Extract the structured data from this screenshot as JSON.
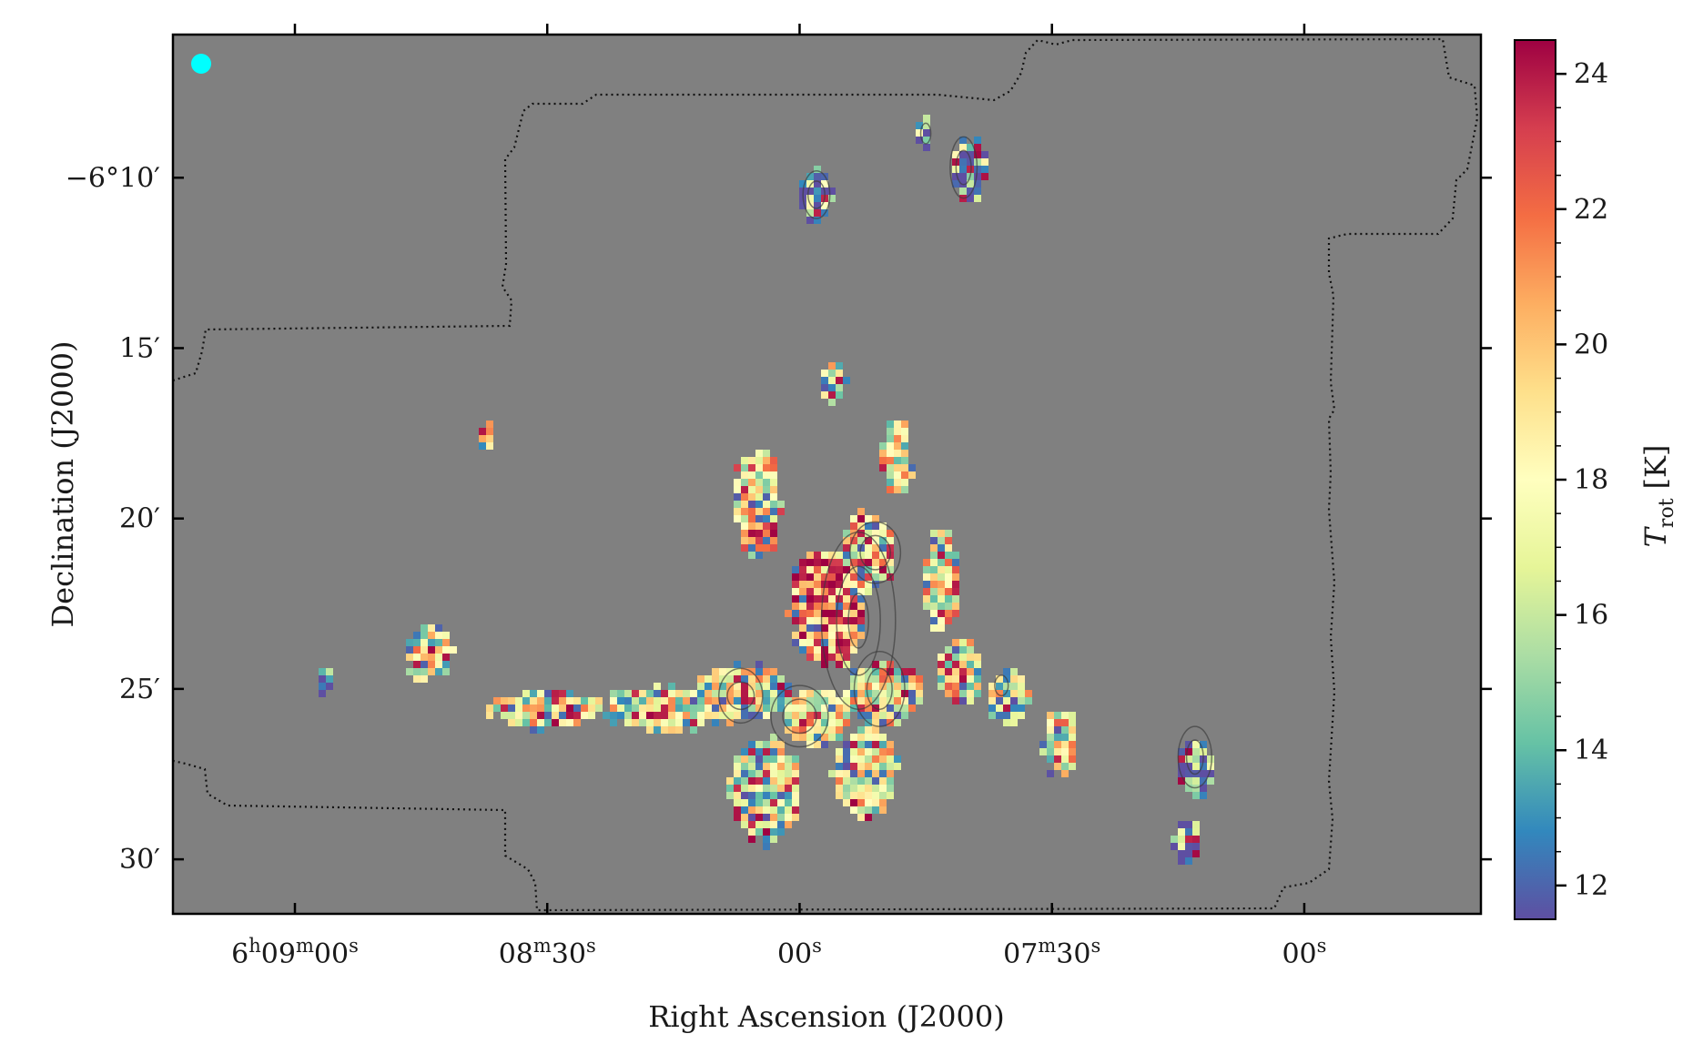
{
  "chart_data": {
    "type": "heatmap",
    "title": "",
    "xlabel": "Right Ascension (J2000)",
    "ylabel": "Declination (J2000)",
    "colorbar_label_main": "T",
    "colorbar_label_sub": "rot",
    "colorbar_label_unit": "[K]",
    "colorbar_range": [
      11.5,
      24.5
    ],
    "colorbar_ticks": [
      12,
      14,
      16,
      18,
      20,
      22,
      24
    ],
    "colormap": "Spectral_r",
    "x_ticks": [
      {
        "ra_seconds": 540,
        "major": "6",
        "sup1": "h",
        "mid": "09",
        "sup2": "m",
        "minor": "00",
        "sup3": "s"
      },
      {
        "ra_seconds": 510,
        "major": "",
        "sup1": "",
        "mid": "08",
        "sup2": "m",
        "minor": "30",
        "sup3": "s"
      },
      {
        "ra_seconds": 480,
        "major": "",
        "sup1": "",
        "mid": "",
        "sup2": "",
        "minor": "00",
        "sup3": "s"
      },
      {
        "ra_seconds": 450,
        "major": "",
        "sup1": "",
        "mid": "07",
        "sup2": "m",
        "minor": "30",
        "sup3": "s"
      },
      {
        "ra_seconds": 420,
        "major": "",
        "sup1": "",
        "mid": "",
        "sup2": "",
        "minor": "00",
        "sup3": "s"
      }
    ],
    "x_range_ra_seconds": [
      554.5,
      399
    ],
    "y_ticks": [
      {
        "dec_arcmin": -10,
        "label": "−6°10′"
      },
      {
        "dec_arcmin": -15,
        "label": "15′"
      },
      {
        "dec_arcmin": -20,
        "label": "20′"
      },
      {
        "dec_arcmin": -25,
        "label": "25′"
      },
      {
        "dec_arcmin": -30,
        "label": "30′"
      }
    ],
    "y_range_dec_arcmin": [
      -31.6,
      -5.8
    ],
    "background_color": "#808080",
    "beam_marker_color": "#00ffff",
    "blobs_deg": [
      {
        "ra": 477.0,
        "dec": -22.6,
        "sx": 4.5,
        "sy": 1.8,
        "temp": 22.0
      },
      {
        "ra": 473.5,
        "dec": -22.9,
        "sx": 1.3,
        "sy": 1.0,
        "temp": 24.5
      },
      {
        "ra": 474.5,
        "dec": -23.6,
        "sx": 1.4,
        "sy": 0.8,
        "temp": 21.5
      },
      {
        "ra": 472.0,
        "dec": -21.0,
        "sx": 3.6,
        "sy": 1.2,
        "temp": 17.5
      },
      {
        "ra": 470.0,
        "dec": -25.1,
        "sx": 5.0,
        "sy": 1.0,
        "temp": 18.0
      },
      {
        "ra": 478.0,
        "dec": -25.8,
        "sx": 4.5,
        "sy": 0.9,
        "temp": 18.5
      },
      {
        "ra": 486.0,
        "dec": -25.1,
        "sx": 6.0,
        "sy": 0.9,
        "temp": 17.0
      },
      {
        "ra": 496.0,
        "dec": -25.6,
        "sx": 8.0,
        "sy": 0.7,
        "temp": 17.0
      },
      {
        "ra": 510.0,
        "dec": -25.6,
        "sx": 7.0,
        "sy": 0.6,
        "temp": 17.5
      },
      {
        "ra": 484.0,
        "dec": -28.0,
        "sx": 4.5,
        "sy": 1.6,
        "temp": 17.0
      },
      {
        "ra": 472.0,
        "dec": -27.5,
        "sx": 4.0,
        "sy": 1.4,
        "temp": 17.5
      },
      {
        "ra": 485.0,
        "dec": -19.6,
        "sx": 3.0,
        "sy": 1.8,
        "temp": 19.0
      },
      {
        "ra": 468.5,
        "dec": -18.2,
        "sx": 2.0,
        "sy": 1.2,
        "temp": 17.5
      },
      {
        "ra": 476.0,
        "dec": -16.0,
        "sx": 1.6,
        "sy": 0.6,
        "temp": 17.0
      },
      {
        "ra": 463.0,
        "dec": -21.8,
        "sx": 2.5,
        "sy": 1.5,
        "temp": 18.5
      },
      {
        "ra": 461.0,
        "dec": -24.5,
        "sx": 3.0,
        "sy": 1.0,
        "temp": 18.0
      },
      {
        "ra": 455.0,
        "dec": -25.2,
        "sx": 2.5,
        "sy": 1.0,
        "temp": 17.0
      },
      {
        "ra": 449.0,
        "dec": -26.5,
        "sx": 2.2,
        "sy": 1.1,
        "temp": 18.0
      },
      {
        "ra": 433.0,
        "dec": -27.3,
        "sx": 2.2,
        "sy": 0.9,
        "temp": 13.0
      },
      {
        "ra": 434.0,
        "dec": -29.5,
        "sx": 1.6,
        "sy": 0.8,
        "temp": 13.5
      },
      {
        "ra": 524.0,
        "dec": -23.9,
        "sx": 3.0,
        "sy": 0.9,
        "temp": 17.5
      },
      {
        "ra": 536.5,
        "dec": -24.8,
        "sx": 1.0,
        "sy": 0.5,
        "temp": 14.0
      },
      {
        "ra": 478.0,
        "dec": -10.5,
        "sx": 2.0,
        "sy": 0.9,
        "temp": 14.0
      },
      {
        "ra": 465.0,
        "dec": -8.7,
        "sx": 1.0,
        "sy": 0.5,
        "temp": 15.0
      },
      {
        "ra": 460.0,
        "dec": -9.8,
        "sx": 2.3,
        "sy": 1.0,
        "temp": 14.5
      },
      {
        "ra": 517.0,
        "dec": -17.6,
        "sx": 0.9,
        "sy": 0.5,
        "temp": 17.0
      }
    ],
    "contours_deg": [
      {
        "ra": 473.0,
        "dec": -23.0,
        "rx": [
          1.2,
          2.6,
          4.4
        ],
        "ry": [
          0.8,
          1.6,
          2.6
        ]
      },
      {
        "ra": 470.5,
        "dec": -25.0,
        "rx": [
          1.5,
          3.0
        ],
        "ry": [
          0.6,
          1.1
        ]
      },
      {
        "ra": 471.0,
        "dec": -21.0,
        "rx": [
          1.8,
          3.0
        ],
        "ry": [
          0.5,
          0.9
        ]
      },
      {
        "ra": 480.0,
        "dec": -25.8,
        "rx": [
          2.0,
          3.4
        ],
        "ry": [
          0.5,
          0.9
        ]
      },
      {
        "ra": 487.0,
        "dec": -25.2,
        "rx": [
          1.6,
          2.6
        ],
        "ry": [
          0.4,
          0.8
        ]
      },
      {
        "ra": 433.0,
        "dec": -27.0,
        "rx": [
          1.0,
          2.0
        ],
        "ry": [
          0.5,
          0.9
        ]
      },
      {
        "ra": 478.0,
        "dec": -10.5,
        "rx": [
          1.0,
          1.6
        ],
        "ry": [
          0.4,
          0.7
        ]
      },
      {
        "ra": 460.5,
        "dec": -9.7,
        "rx": [
          0.9,
          1.6
        ],
        "ry": [
          0.5,
          0.9
        ]
      },
      {
        "ra": 465.0,
        "dec": -8.7,
        "rx": [
          0.6
        ],
        "ry": [
          0.3
        ]
      },
      {
        "ra": 456.0,
        "dec": -24.9,
        "rx": [
          0.8
        ],
        "ry": [
          0.3
        ]
      }
    ]
  }
}
